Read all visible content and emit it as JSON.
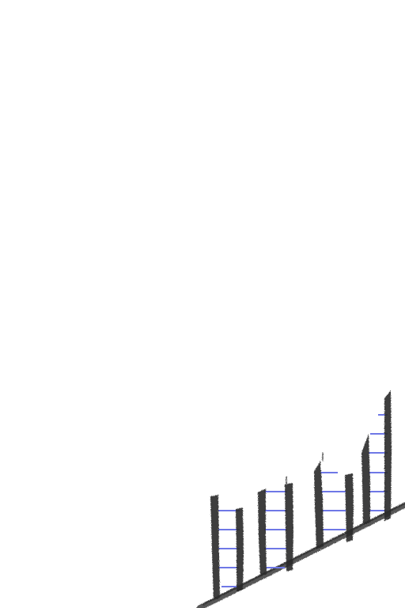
{
  "scene": {
    "background": "#ffffff",
    "stroke_color": "#2b2b2b",
    "rung_color": "#6f78e6",
    "ladder_count": 4
  }
}
